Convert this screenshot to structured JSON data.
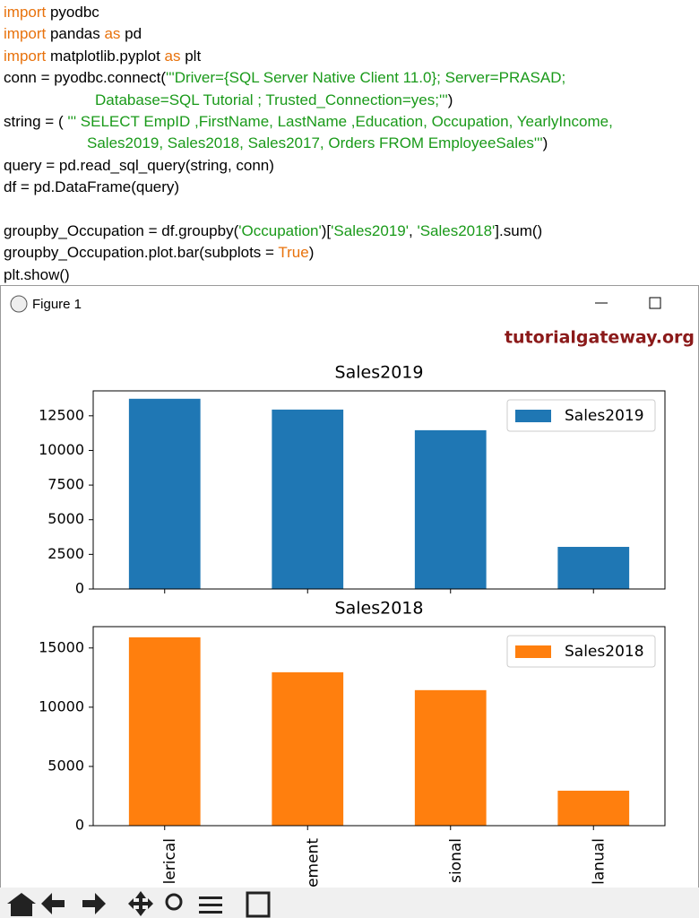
{
  "code": {
    "lines": [
      [
        {
          "text": "import",
          "color": "#e8720c"
        },
        {
          "text": " pyodbc",
          "color": "#000000"
        }
      ],
      [
        {
          "text": "import",
          "color": "#e8720c"
        },
        {
          "text": " pandas ",
          "color": "#000000"
        },
        {
          "text": "as",
          "color": "#e8720c"
        },
        {
          "text": " pd",
          "color": "#000000"
        }
      ],
      [
        {
          "text": "import",
          "color": "#e8720c"
        },
        {
          "text": " matplotlib.pyplot ",
          "color": "#000000"
        },
        {
          "text": "as",
          "color": "#e8720c"
        },
        {
          "text": " plt",
          "color": "#000000"
        }
      ],
      [
        {
          "text": "conn = pyodbc.connect(",
          "color": "#000000"
        },
        {
          "text": "'''Driver={SQL Server Native Client 11.0}; Server=PRASAD;",
          "color": "#1a9a1a"
        }
      ],
      [
        {
          "text": "Database=SQL Tutorial ; Trusted_Connection=yes;'''",
          "color": "#1a9a1a"
        },
        {
          "text": ")",
          "color": "#000000"
        }
      ],
      [
        {
          "text": "string = ( ",
          "color": "#000000"
        },
        {
          "text": "''' SELECT EmpID ,FirstName, LastName ,Education, Occupation, YearlyIncome,",
          "color": "#1a9a1a"
        }
      ],
      [
        {
          "text": "Sales2019, Sales2018, Sales2017, Orders FROM EmployeeSales'''",
          "color": "#1a9a1a"
        },
        {
          "text": ")",
          "color": "#000000"
        }
      ],
      [
        {
          "text": "query = pd.read_sql_query(string, conn)",
          "color": "#000000"
        }
      ],
      [
        {
          "text": "df = pd.DataFrame(query)",
          "color": "#000000"
        }
      ],
      [],
      [
        {
          "text": "groupby_Occupation = df.groupby(",
          "color": "#000000"
        },
        {
          "text": "'Occupation'",
          "color": "#1a9a1a"
        },
        {
          "text": ")[",
          "color": "#000000"
        },
        {
          "text": "'Sales2019'",
          "color": "#1a9a1a"
        },
        {
          "text": ", ",
          "color": "#000000"
        },
        {
          "text": "'Sales2018'",
          "color": "#1a9a1a"
        },
        {
          "text": "].sum()",
          "color": "#000000"
        }
      ],
      [
        {
          "text": "groupby_Occupation.plot.bar(subplots = ",
          "color": "#000000"
        },
        {
          "text": "True",
          "color": "#e8720c"
        },
        {
          "text": ")",
          "color": "#000000"
        }
      ],
      [
        {
          "text": "plt.show()",
          "color": "#000000"
        }
      ]
    ]
  },
  "window": {
    "title": "Figure 1",
    "watermark": "tutorialgateway.org"
  },
  "chart_data": [
    {
      "type": "bar",
      "title": "Sales2019",
      "categories": [
        null,
        null,
        null,
        null
      ],
      "series": [
        {
          "name": "Sales2019",
          "color": "#1f77b4",
          "values": [
            13730,
            12950,
            11460,
            3040
          ]
        }
      ],
      "ylim": [
        0,
        14300
      ],
      "yticks": [
        0,
        2500,
        5000,
        7500,
        10000,
        12500
      ],
      "legend": "upper right"
    },
    {
      "type": "bar",
      "title": "Sales2018",
      "categories": [
        "lerical",
        "ement",
        "sional",
        "lanual"
      ],
      "series": [
        {
          "name": "Sales2018",
          "color": "#ff7f0e",
          "values": [
            15900,
            12950,
            11440,
            2950
          ]
        }
      ],
      "ylim": [
        0,
        16800
      ],
      "yticks": [
        0,
        5000,
        10000,
        15000
      ],
      "legend": "upper right"
    }
  ]
}
